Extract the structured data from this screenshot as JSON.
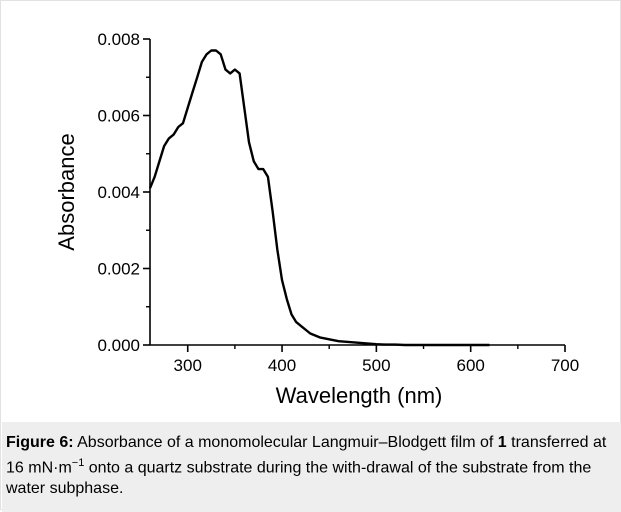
{
  "chart_data": {
    "type": "line",
    "title": "",
    "xlabel": "Wavelength (nm)",
    "ylabel": "Absorbance",
    "xlim": [
      260,
      700
    ],
    "ylim": [
      0,
      0.008
    ],
    "x_ticks": [
      300,
      400,
      500,
      600,
      700
    ],
    "x_tick_labels": [
      "300",
      "400",
      "500",
      "600",
      "700"
    ],
    "y_ticks": [
      0,
      0.002,
      0.004,
      0.006,
      0.008
    ],
    "y_tick_labels": [
      "0.000",
      "0.002",
      "0.004",
      "0.006",
      "0.008"
    ],
    "grid": false,
    "series": [
      {
        "x": [
          260,
          265,
          270,
          275,
          280,
          285,
          290,
          295,
          300,
          305,
          310,
          315,
          320,
          325,
          330,
          335,
          340,
          345,
          350,
          355,
          360,
          365,
          370,
          375,
          380,
          385,
          390,
          395,
          400,
          405,
          410,
          415,
          420,
          430,
          440,
          450,
          460,
          470,
          480,
          490,
          500,
          510,
          520,
          530,
          540,
          550,
          560,
          580,
          600,
          620
        ],
        "y": [
          0.0041,
          0.0044,
          0.0048,
          0.0052,
          0.0054,
          0.0055,
          0.0057,
          0.0058,
          0.0062,
          0.0066,
          0.007,
          0.0074,
          0.0076,
          0.0077,
          0.0077,
          0.0076,
          0.0072,
          0.0071,
          0.0072,
          0.0071,
          0.0062,
          0.0053,
          0.0048,
          0.0046,
          0.0046,
          0.0044,
          0.0035,
          0.0025,
          0.0017,
          0.0012,
          0.0008,
          0.0006,
          0.0005,
          0.0003,
          0.0002,
          0.00015,
          0.0001,
          8e-05,
          6e-05,
          4e-05,
          2e-05,
          1e-05,
          1e-05,
          0.0,
          0.0,
          0.0,
          0.0,
          0.0,
          0.0,
          0.0
        ]
      }
    ]
  },
  "caption": {
    "label": "Figure 6:",
    "text_before": " Absorbance of a monomolecular Langmuir–Blodgett film of ",
    "compound": "1",
    "text_after_1": " transferred at 16 mN·m",
    "superscript": "−1",
    "text_after_2": " onto a quartz substrate during the with-drawal of the substrate from the water subphase."
  }
}
